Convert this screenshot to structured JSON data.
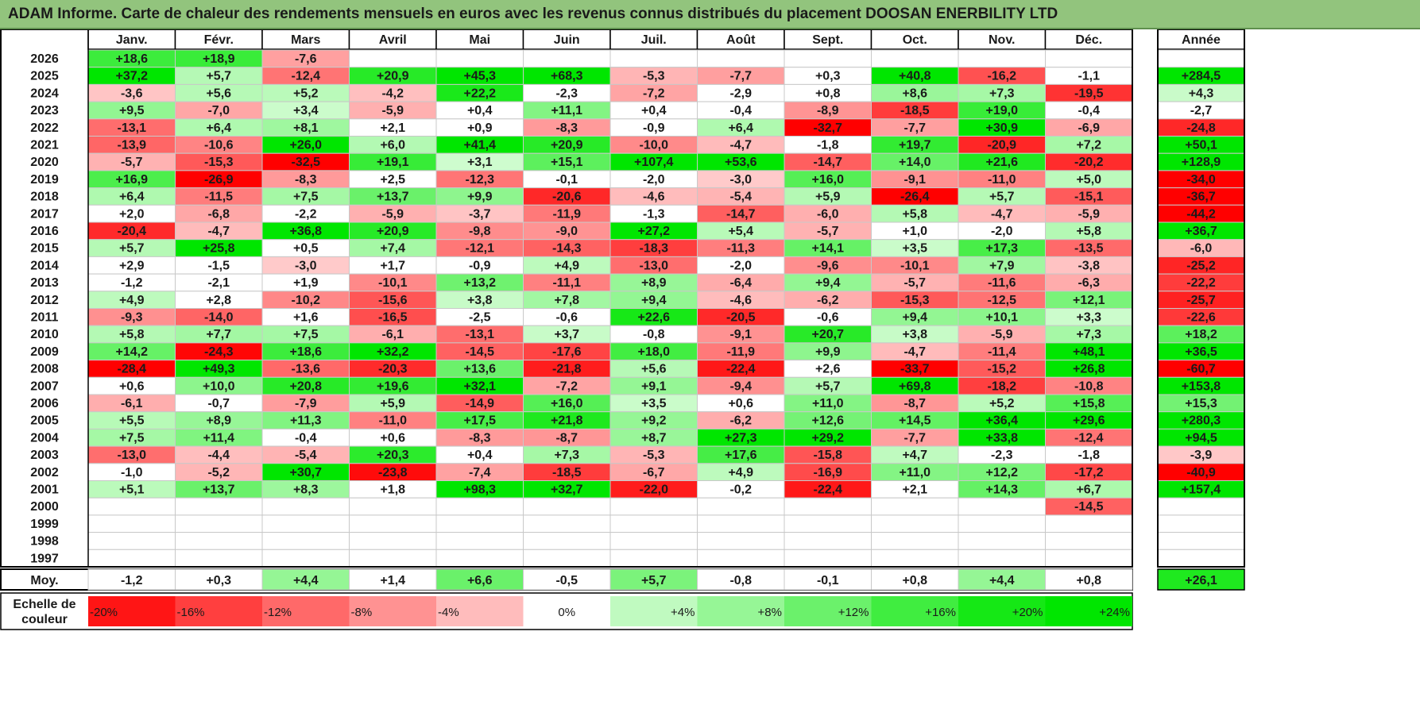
{
  "title": "ADAM Informe. Carte de chaleur des rendements mensuels en euros avec les revenus connus distribués du placement DOOSAN ENERBILITY LTD",
  "colors": {
    "title_bg": "#92c47d",
    "negative_max": "#ff0000",
    "positive_max": "#00e600",
    "neutral": "#ffffff",
    "grid": "#c8c8c8",
    "border": "#000000"
  },
  "chart_data": {
    "type": "heatmap",
    "months": [
      "Janv.",
      "Févr.",
      "Mars",
      "Avril",
      "Mai",
      "Juin",
      "Juil.",
      "Août",
      "Sept.",
      "Oct.",
      "Nov.",
      "Déc."
    ],
    "year_header": "Année",
    "avg_label": "Moy.",
    "scale_label_line1": "Echelle de",
    "scale_label_line2": "couleur",
    "rows": [
      {
        "year": "2026",
        "values": [
          "+18,6",
          "+18,9",
          "-7,6",
          "",
          "",
          "",
          "",
          "",
          "",
          "",
          "",
          ""
        ],
        "annual": ""
      },
      {
        "year": "2025",
        "values": [
          "+37,2",
          "+5,7",
          "-12,4",
          "+20,9",
          "+45,3",
          "+68,3",
          "-5,3",
          "-7,7",
          "+0,3",
          "+40,8",
          "-16,2",
          "-1,1"
        ],
        "annual": "+284,5"
      },
      {
        "year": "2024",
        "values": [
          "-3,6",
          "+5,6",
          "+5,2",
          "-4,2",
          "+22,2",
          "-2,3",
          "-7,2",
          "-2,9",
          "+0,8",
          "+8,6",
          "+7,3",
          "-19,5"
        ],
        "annual": "+4,3"
      },
      {
        "year": "2023",
        "values": [
          "+9,5",
          "-7,0",
          "+3,4",
          "-5,9",
          "+0,4",
          "+11,1",
          "+0,4",
          "-0,4",
          "-8,9",
          "-18,5",
          "+19,0",
          "-0,4"
        ],
        "annual": "-2,7"
      },
      {
        "year": "2022",
        "values": [
          "-13,1",
          "+6,4",
          "+8,1",
          "+2,1",
          "+0,9",
          "-8,3",
          "-0,9",
          "+6,4",
          "-32,7",
          "-7,7",
          "+30,9",
          "-6,9"
        ],
        "annual": "-24,8"
      },
      {
        "year": "2021",
        "values": [
          "-13,9",
          "-10,6",
          "+26,0",
          "+6,0",
          "+41,4",
          "+20,9",
          "-10,0",
          "-4,7",
          "-1,8",
          "+19,7",
          "-20,9",
          "+7,2"
        ],
        "annual": "+50,1"
      },
      {
        "year": "2020",
        "values": [
          "-5,7",
          "-15,3",
          "-32,5",
          "+19,1",
          "+3,1",
          "+15,1",
          "+107,4",
          "+53,6",
          "-14,7",
          "+14,0",
          "+21,6",
          "-20,2"
        ],
        "annual": "+128,9"
      },
      {
        "year": "2019",
        "values": [
          "+16,9",
          "-26,9",
          "-8,3",
          "+2,5",
          "-12,3",
          "-0,1",
          "-2,0",
          "-3,0",
          "+16,0",
          "-9,1",
          "-11,0",
          "+5,0"
        ],
        "annual": "-34,0"
      },
      {
        "year": "2018",
        "values": [
          "+6,4",
          "-11,5",
          "+7,5",
          "+13,7",
          "+9,9",
          "-20,6",
          "-4,6",
          "-5,4",
          "+5,9",
          "-26,4",
          "+5,7",
          "-15,1"
        ],
        "annual": "-36,7"
      },
      {
        "year": "2017",
        "values": [
          "+2,0",
          "-6,8",
          "-2,2",
          "-5,9",
          "-3,7",
          "-11,9",
          "-1,3",
          "-14,7",
          "-6,0",
          "+5,8",
          "-4,7",
          "-5,9"
        ],
        "annual": "-44,2"
      },
      {
        "year": "2016",
        "values": [
          "-20,4",
          "-4,7",
          "+36,8",
          "+20,9",
          "-9,8",
          "-9,0",
          "+27,2",
          "+5,4",
          "-5,7",
          "+1,0",
          "-2,0",
          "+5,8"
        ],
        "annual": "+36,7"
      },
      {
        "year": "2015",
        "values": [
          "+5,7",
          "+25,8",
          "+0,5",
          "+7,4",
          "-12,1",
          "-14,3",
          "-18,3",
          "-11,3",
          "+14,1",
          "+3,5",
          "+17,3",
          "-13,5"
        ],
        "annual": "-6,0"
      },
      {
        "year": "2014",
        "values": [
          "+2,9",
          "-1,5",
          "-3,0",
          "+1,7",
          "-0,9",
          "+4,9",
          "-13,0",
          "-2,0",
          "-9,6",
          "-10,1",
          "+7,9",
          "-3,8"
        ],
        "annual": "-25,2"
      },
      {
        "year": "2013",
        "values": [
          "-1,2",
          "-2,1",
          "+1,9",
          "-10,1",
          "+13,2",
          "-11,1",
          "+8,9",
          "-6,4",
          "+9,4",
          "-5,7",
          "-11,6",
          "-6,3"
        ],
        "annual": "-22,2"
      },
      {
        "year": "2012",
        "values": [
          "+4,9",
          "+2,8",
          "-10,2",
          "-15,6",
          "+3,8",
          "+7,8",
          "+9,4",
          "-4,6",
          "-6,2",
          "-15,3",
          "-12,5",
          "+12,1"
        ],
        "annual": "-25,7"
      },
      {
        "year": "2011",
        "values": [
          "-9,3",
          "-14,0",
          "+1,6",
          "-16,5",
          "-2,5",
          "-0,6",
          "+22,6",
          "-20,5",
          "-0,6",
          "+9,4",
          "+10,1",
          "+3,3"
        ],
        "annual": "-22,6"
      },
      {
        "year": "2010",
        "values": [
          "+5,8",
          "+7,7",
          "+7,5",
          "-6,1",
          "-13,1",
          "+3,7",
          "-0,8",
          "-9,1",
          "+20,7",
          "+3,8",
          "-5,9",
          "+7,3"
        ],
        "annual": "+18,2"
      },
      {
        "year": "2009",
        "values": [
          "+14,2",
          "-24,3",
          "+18,6",
          "+32,2",
          "-14,5",
          "-17,6",
          "+18,0",
          "-11,9",
          "+9,9",
          "-4,7",
          "-11,4",
          "+48,1"
        ],
        "annual": "+36,5"
      },
      {
        "year": "2008",
        "values": [
          "-28,4",
          "+49,3",
          "-13,6",
          "-20,3",
          "+13,6",
          "-21,8",
          "+5,6",
          "-22,4",
          "+2,6",
          "-33,7",
          "-15,2",
          "+26,8"
        ],
        "annual": "-60,7"
      },
      {
        "year": "2007",
        "values": [
          "+0,6",
          "+10,0",
          "+20,8",
          "+19,6",
          "+32,1",
          "-7,2",
          "+9,1",
          "-9,4",
          "+5,7",
          "+69,8",
          "-18,2",
          "-10,8"
        ],
        "annual": "+153,8"
      },
      {
        "year": "2006",
        "values": [
          "-6,1",
          "-0,7",
          "-7,9",
          "+5,9",
          "-14,9",
          "+16,0",
          "+3,5",
          "+0,6",
          "+11,0",
          "-8,7",
          "+5,2",
          "+15,8"
        ],
        "annual": "+15,3"
      },
      {
        "year": "2005",
        "values": [
          "+5,5",
          "+8,9",
          "+11,3",
          "-11,0",
          "+17,5",
          "+21,8",
          "+9,2",
          "-6,2",
          "+12,6",
          "+14,5",
          "+36,4",
          "+29,6"
        ],
        "annual": "+280,3"
      },
      {
        "year": "2004",
        "values": [
          "+7,5",
          "+11,4",
          "-0,4",
          "+0,6",
          "-8,3",
          "-8,7",
          "+8,7",
          "+27,3",
          "+29,2",
          "-7,7",
          "+33,8",
          "-12,4"
        ],
        "annual": "+94,5"
      },
      {
        "year": "2003",
        "values": [
          "-13,0",
          "-4,4",
          "-5,4",
          "+20,3",
          "+0,4",
          "+7,3",
          "-5,3",
          "+17,6",
          "-15,8",
          "+4,7",
          "-2,3",
          "-1,8"
        ],
        "annual": "-3,9"
      },
      {
        "year": "2002",
        "values": [
          "-1,0",
          "-5,2",
          "+30,7",
          "-23,8",
          "-7,4",
          "-18,5",
          "-6,7",
          "+4,9",
          "-16,9",
          "+11,0",
          "+12,2",
          "-17,2"
        ],
        "annual": "-40,9"
      },
      {
        "year": "2001",
        "values": [
          "+5,1",
          "+13,7",
          "+8,3",
          "+1,8",
          "+98,3",
          "+32,7",
          "-22,0",
          "-0,2",
          "-22,4",
          "+2,1",
          "+14,3",
          "+6,7"
        ],
        "annual": "+157,4"
      },
      {
        "year": "2000",
        "values": [
          "",
          "",
          "",
          "",
          "",
          "",
          "",
          "",
          "",
          "",
          "",
          "-14,5"
        ],
        "annual": ""
      },
      {
        "year": "1999",
        "values": [
          "",
          "",
          "",
          "",
          "",
          "",
          "",
          "",
          "",
          "",
          "",
          ""
        ],
        "annual": ""
      },
      {
        "year": "1998",
        "values": [
          "",
          "",
          "",
          "",
          "",
          "",
          "",
          "",
          "",
          "",
          "",
          ""
        ],
        "annual": ""
      },
      {
        "year": "1997",
        "values": [
          "",
          "",
          "",
          "",
          "",
          "",
          "",
          "",
          "",
          "",
          "",
          ""
        ],
        "annual": ""
      }
    ],
    "averages": [
      "-1,2",
      "+0,3",
      "+4,4",
      "+1,4",
      "+6,6",
      "-0,5",
      "+5,7",
      "-0,8",
      "-0,1",
      "+0,8",
      "+4,4",
      "+0,8"
    ],
    "average_annual": "+26,1",
    "scale": [
      "-20%",
      "-16%",
      "-12%",
      "-8%",
      "-4%",
      "0%",
      "+4%",
      "+8%",
      "+12%",
      "+16%",
      "+20%",
      "+24%"
    ]
  }
}
